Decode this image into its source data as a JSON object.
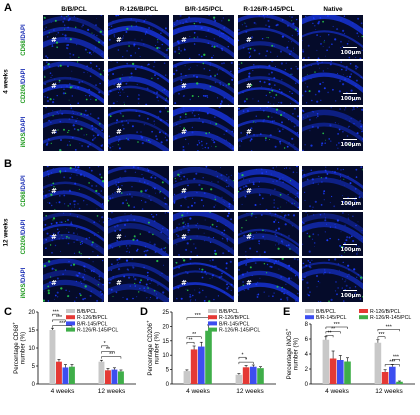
{
  "panels": {
    "a_letter": "A",
    "b_letter": "B",
    "c_letter": "C",
    "d_letter": "D",
    "e_letter": "E"
  },
  "columns": [
    "B/B/PCL",
    "R-126/B/PCL",
    "B/R-145/PCL",
    "R-126/R-145/PCL",
    "Native"
  ],
  "groups": {
    "a_time": "4 weeks",
    "b_time": "12 weeks"
  },
  "rows": [
    {
      "marker": "CD68",
      "sep": "/",
      "dapi": "DAPI"
    },
    {
      "marker": "CD206",
      "sep": "/",
      "dapi": "DAPI"
    },
    {
      "marker": "iNOS",
      "sep": "/",
      "dapi": "DAPI"
    }
  ],
  "tile_mark": "#",
  "scale_text": "100μm",
  "colors": {
    "bb": "#c8c8c8",
    "r126": "#e53935",
    "r145": "#3d4ef0",
    "both": "#3fae49",
    "tile_bg": "#050b2a",
    "dapi": "#1b3cff",
    "marker": "#29d34a"
  },
  "legend": [
    "B/B/PCL",
    "R-126/B/PCL",
    "B/R-145/PCL",
    "R-126/R-145/PCL"
  ],
  "chart_data": [
    {
      "type": "bar",
      "ylabel_line1": "Percentage CD68",
      "ylabel_sup": "+",
      "ylabel_line2": "number (%)",
      "ylim": [
        0,
        20
      ],
      "yticks": [
        0,
        5,
        10,
        15,
        20
      ],
      "categories": [
        "4 weeks",
        "12 weeks"
      ],
      "series": [
        {
          "name": "B/B/PCL",
          "values": [
            15.0,
            6.2
          ]
        },
        {
          "name": "R-126/B/PCL",
          "values": [
            6.2,
            3.8
          ]
        },
        {
          "name": "B/R-145/PCL",
          "values": [
            4.6,
            4.0
          ]
        },
        {
          "name": "R-126/R-145/PCL",
          "values": [
            4.8,
            3.5
          ]
        }
      ],
      "errors": [
        [
          0.5,
          0.4
        ],
        [
          0.6,
          0.5
        ],
        [
          0.8,
          0.5
        ],
        [
          0.6,
          0.4
        ]
      ],
      "significance": [
        "***",
        "***",
        "***",
        "*",
        "**",
        "**"
      ]
    },
    {
      "type": "bar",
      "ylabel_line1": "Percentage CD206",
      "ylabel_sup": "+",
      "ylabel_line2": "number (%)",
      "ylim": [
        0,
        25
      ],
      "yticks": [
        0,
        5,
        10,
        15,
        20,
        25
      ],
      "categories": [
        "4 weeks",
        "12 weeks"
      ],
      "series": [
        {
          "name": "B/B/PCL",
          "values": [
            4.5,
            3.2
          ]
        },
        {
          "name": "R-126/B/PCL",
          "values": [
            12.0,
            5.8
          ]
        },
        {
          "name": "B/R-145/PCL",
          "values": [
            13.0,
            6.0
          ]
        },
        {
          "name": "R-126/R-145/PCL",
          "values": [
            18.5,
            5.5
          ]
        }
      ],
      "errors": [
        [
          0.4,
          0.4
        ],
        [
          1.2,
          0.6
        ],
        [
          1.5,
          0.6
        ],
        [
          2.0,
          0.5
        ]
      ],
      "significance": [
        "***",
        "**",
        "**",
        "*",
        "*"
      ]
    },
    {
      "type": "bar",
      "ylabel_line1": "Percentage iNOS",
      "ylabel_sup": "+",
      "ylabel_line2": "number (%)",
      "ylim": [
        0,
        8
      ],
      "yticks": [
        0,
        2,
        4,
        6,
        8
      ],
      "categories": [
        "4 weeks",
        "12 weeks"
      ],
      "series": [
        {
          "name": "B/B/PCL",
          "values": [
            5.9,
            5.5
          ]
        },
        {
          "name": "R-126/B/PCL",
          "values": [
            3.4,
            1.6
          ]
        },
        {
          "name": "B/R-145/PCL",
          "values": [
            3.2,
            2.3
          ]
        },
        {
          "name": "R-126/R-145/PCL",
          "values": [
            3.0,
            0.3
          ]
        }
      ],
      "errors": [
        [
          0.4,
          0.4
        ],
        [
          1.0,
          0.3
        ],
        [
          0.6,
          0.3
        ],
        [
          0.5,
          0.1
        ]
      ],
      "significance": [
        "***",
        "**",
        "**",
        "***",
        "***",
        "***",
        "***"
      ]
    }
  ]
}
